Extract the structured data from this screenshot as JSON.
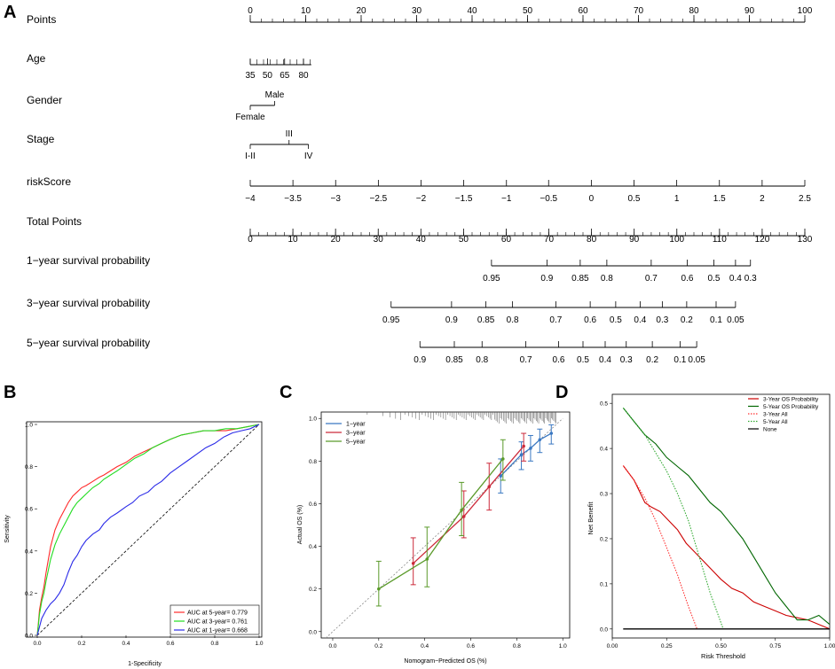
{
  "panels": {
    "A": "A",
    "B": "B",
    "C": "C",
    "D": "D"
  },
  "chart_data": [
    {
      "type": "nomogram",
      "panel": "A",
      "rows": [
        {
          "key": "points",
          "label": "Points",
          "axis": {
            "min": 0,
            "max": 100,
            "major": [
              0,
              10,
              20,
              30,
              40,
              50,
              60,
              70,
              80,
              90,
              100
            ],
            "minor_step": 2
          }
        },
        {
          "key": "age",
          "label": "Age",
          "ticks": [
            {
              "value": 35,
              "points": 0
            },
            {
              "value": 50,
              "points": 3.1
            },
            {
              "value": 65,
              "points": 6.2
            },
            {
              "value": 80,
              "points": 9.6
            }
          ],
          "tick_labels": [
            "35",
            "50",
            "65",
            "80"
          ],
          "minor_range_points": [
            0,
            11
          ],
          "minor_step": 1.2
        },
        {
          "key": "gender",
          "label": "Gender",
          "ticks": [
            {
              "value": "Female",
              "points": 0,
              "side": "below"
            },
            {
              "value": "Male",
              "points": 4.4,
              "side": "above"
            }
          ]
        },
        {
          "key": "stage",
          "label": "Stage",
          "ticks": [
            {
              "value": "I-II",
              "points": 0,
              "side": "below"
            },
            {
              "value": "III",
              "points": 7,
              "side": "above"
            },
            {
              "value": "IV",
              "points": 10.5,
              "side": "below"
            }
          ]
        },
        {
          "key": "riskscore",
          "label": "riskScore",
          "ticks": [
            {
              "value": "−4",
              "points": 0
            },
            {
              "value": "−3.5",
              "points": 7.7
            },
            {
              "value": "−3",
              "points": 15.4
            },
            {
              "value": "−2.5",
              "points": 23.1
            },
            {
              "value": "−2",
              "points": 30.8
            },
            {
              "value": "−1.5",
              "points": 38.5
            },
            {
              "value": "−1",
              "points": 46.2
            },
            {
              "value": "−0.5",
              "points": 53.8
            },
            {
              "value": "0",
              "points": 61.5
            },
            {
              "value": "0.5",
              "points": 69.2
            },
            {
              "value": "1",
              "points": 76.9
            },
            {
              "value": "1.5",
              "points": 84.6
            },
            {
              "value": "2",
              "points": 92.3
            },
            {
              "value": "2.5",
              "points": 100
            }
          ]
        },
        {
          "key": "total",
          "label": "Total Points",
          "axis": {
            "min": 0,
            "max": 130,
            "major": [
              0,
              10,
              20,
              30,
              40,
              50,
              60,
              70,
              80,
              90,
              100,
              110,
              120,
              130
            ],
            "minor_step": 2
          }
        },
        {
          "key": "surv1",
          "label": "1−year survival probability",
          "ticks": [
            {
              "value": "0.95",
              "points": 43.5
            },
            {
              "value": "0.9",
              "points": 53.5
            },
            {
              "value": "0.85",
              "points": 59.5
            },
            {
              "value": "0.8",
              "points": 64.3
            },
            {
              "value": "0.7",
              "points": 72.3
            },
            {
              "value": "0.6",
              "points": 78.8
            },
            {
              "value": "0.5",
              "points": 83.6
            },
            {
              "value": "0.4",
              "points": 87.5
            },
            {
              "value": "0.3",
              "points": 90.2
            }
          ]
        },
        {
          "key": "surv3",
          "label": "3−year survival probability",
          "ticks": [
            {
              "value": "0.95",
              "points": 25.4
            },
            {
              "value": "0.9",
              "points": 36.3
            },
            {
              "value": "0.85",
              "points": 42.5
            },
            {
              "value": "0.8",
              "points": 47.3
            },
            {
              "value": "0.7",
              "points": 55.1
            },
            {
              "value": "0.6",
              "points": 61.3
            },
            {
              "value": "0.5",
              "points": 65.9
            },
            {
              "value": "0.4",
              "points": 70.3
            },
            {
              "value": "0.3",
              "points": 74.3
            },
            {
              "value": "0.2",
              "points": 78.7
            },
            {
              "value": "0.1",
              "points": 84.0
            },
            {
              "value": "0.05",
              "points": 87.5
            }
          ]
        },
        {
          "key": "surv5",
          "label": "5−year survival probability",
          "ticks": [
            {
              "value": "0.9",
              "points": 30.6
            },
            {
              "value": "0.85",
              "points": 36.8
            },
            {
              "value": "0.8",
              "points": 41.8
            },
            {
              "value": "0.7",
              "points": 49.7
            },
            {
              "value": "0.6",
              "points": 55.6
            },
            {
              "value": "0.5",
              "points": 60.0
            },
            {
              "value": "0.4",
              "points": 64.0
            },
            {
              "value": "0.3",
              "points": 67.8
            },
            {
              "value": "0.2",
              "points": 72.5
            },
            {
              "value": "0.1",
              "points": 77.5
            },
            {
              "value": "0.05",
              "points": 80.5
            }
          ]
        }
      ]
    },
    {
      "type": "line",
      "panel": "B",
      "title": "",
      "xlabel": "1-Specificity",
      "ylabel": "Sensitivity",
      "xlim": [
        0,
        1
      ],
      "ylim": [
        0,
        1
      ],
      "xticks": [
        "0.0",
        "0.2",
        "0.4",
        "0.6",
        "0.8",
        "1.0"
      ],
      "yticks": [
        "0.0",
        "0.2",
        "0.4",
        "0.6",
        "0.8",
        "1.0"
      ],
      "reference_line": "diagonal",
      "legend": "bottom-right",
      "series": [
        {
          "name": "AUC at 5-year= 0.779",
          "color": "#ff2a2a",
          "x": [
            0,
            0.005,
            0.01,
            0.02,
            0.03,
            0.04,
            0.05,
            0.06,
            0.08,
            0.1,
            0.12,
            0.14,
            0.16,
            0.18,
            0.2,
            0.22,
            0.25,
            0.28,
            0.3,
            0.33,
            0.36,
            0.4,
            0.44,
            0.48,
            0.52,
            0.56,
            0.6,
            0.65,
            0.7,
            0.75,
            0.8,
            0.85,
            0.9,
            0.95,
            1
          ],
          "y": [
            0,
            0.06,
            0.12,
            0.18,
            0.23,
            0.3,
            0.36,
            0.42,
            0.5,
            0.55,
            0.59,
            0.63,
            0.66,
            0.68,
            0.7,
            0.71,
            0.73,
            0.75,
            0.76,
            0.78,
            0.8,
            0.82,
            0.85,
            0.87,
            0.89,
            0.91,
            0.93,
            0.95,
            0.96,
            0.97,
            0.97,
            0.97,
            0.98,
            0.99,
            1
          ]
        },
        {
          "name": "AUC at 3-year= 0.761",
          "color": "#22dd22",
          "x": [
            0,
            0.005,
            0.01,
            0.02,
            0.03,
            0.04,
            0.05,
            0.06,
            0.08,
            0.1,
            0.12,
            0.14,
            0.16,
            0.18,
            0.2,
            0.22,
            0.25,
            0.28,
            0.3,
            0.33,
            0.36,
            0.4,
            0.44,
            0.48,
            0.52,
            0.56,
            0.6,
            0.65,
            0.7,
            0.75,
            0.8,
            0.85,
            0.9,
            0.95,
            1
          ],
          "y": [
            0,
            0.05,
            0.1,
            0.16,
            0.2,
            0.26,
            0.31,
            0.36,
            0.43,
            0.48,
            0.52,
            0.56,
            0.6,
            0.63,
            0.65,
            0.67,
            0.7,
            0.72,
            0.74,
            0.76,
            0.78,
            0.81,
            0.84,
            0.86,
            0.89,
            0.91,
            0.93,
            0.95,
            0.96,
            0.97,
            0.97,
            0.98,
            0.98,
            0.99,
            1
          ]
        },
        {
          "name": "AUC at 1-year= 0.668",
          "color": "#2a2ae8",
          "x": [
            0,
            0.01,
            0.02,
            0.04,
            0.06,
            0.08,
            0.1,
            0.12,
            0.14,
            0.16,
            0.18,
            0.2,
            0.22,
            0.25,
            0.28,
            0.3,
            0.33,
            0.36,
            0.4,
            0.43,
            0.46,
            0.5,
            0.53,
            0.56,
            0.6,
            0.64,
            0.68,
            0.72,
            0.76,
            0.8,
            0.84,
            0.88,
            0.92,
            0.96,
            1
          ],
          "y": [
            0,
            0.04,
            0.08,
            0.12,
            0.15,
            0.17,
            0.2,
            0.24,
            0.3,
            0.35,
            0.38,
            0.42,
            0.45,
            0.48,
            0.5,
            0.53,
            0.56,
            0.58,
            0.61,
            0.63,
            0.66,
            0.68,
            0.71,
            0.73,
            0.77,
            0.8,
            0.83,
            0.86,
            0.89,
            0.91,
            0.94,
            0.96,
            0.97,
            0.98,
            1
          ]
        }
      ]
    },
    {
      "type": "line",
      "panel": "C",
      "title": "",
      "xlabel": "Nomogram−Predicted OS (%)",
      "ylabel": "Actual OS (%)",
      "xlim": [
        -0.05,
        1.03
      ],
      "ylim": [
        -0.03,
        1.03
      ],
      "xticks": [
        "0.0",
        "0.2",
        "0.4",
        "0.6",
        "0.8",
        "1.0"
      ],
      "yticks": [
        "0.0",
        "0.2",
        "0.4",
        "0.6",
        "0.8",
        "1.0"
      ],
      "reference_line": "diagonal-dotted",
      "legend": "top-left",
      "series": [
        {
          "name": "1−year",
          "color": "#3a78c2",
          "x": [
            0.73,
            0.82,
            0.86,
            0.9,
            0.95
          ],
          "y": [
            0.73,
            0.83,
            0.86,
            0.9,
            0.93
          ],
          "err_lo": [
            0.65,
            0.76,
            0.8,
            0.84,
            0.88
          ],
          "err_hi": [
            0.81,
            0.89,
            0.92,
            0.95,
            0.97
          ]
        },
        {
          "name": "3−year",
          "color": "#cc2a3a",
          "x": [
            0.35,
            0.57,
            0.68,
            0.83
          ],
          "y": [
            0.32,
            0.54,
            0.68,
            0.87
          ],
          "err_lo": [
            0.22,
            0.44,
            0.57,
            0.8
          ],
          "err_hi": [
            0.44,
            0.66,
            0.79,
            0.93
          ]
        },
        {
          "name": "5−year",
          "color": "#5a9a2a",
          "x": [
            0.2,
            0.41,
            0.56,
            0.74
          ],
          "y": [
            0.2,
            0.34,
            0.57,
            0.81
          ],
          "err_lo": [
            0.12,
            0.21,
            0.45,
            0.71
          ],
          "err_hi": [
            0.33,
            0.49,
            0.7,
            0.9
          ]
        }
      ]
    },
    {
      "type": "line",
      "panel": "D",
      "title": "",
      "xlabel": "Risk Threshold",
      "ylabel": "Net Benefit",
      "xlim": [
        0,
        1
      ],
      "ylim": [
        -0.02,
        0.52
      ],
      "xticks": [
        "0.00",
        "0.25",
        "0.50",
        "0.75",
        "1.00"
      ],
      "yticks": [
        "0.0",
        "0.1",
        "0.2",
        "0.3",
        "0.4",
        "0.5"
      ],
      "legend": "top-right",
      "series": [
        {
          "name": "3-Year OS Probability",
          "color": "#cc0000",
          "dash": "solid",
          "x": [
            0.05,
            0.1,
            0.15,
            0.18,
            0.22,
            0.26,
            0.3,
            0.34,
            0.38,
            0.42,
            0.46,
            0.5,
            0.55,
            0.6,
            0.65,
            0.7,
            0.75,
            0.8,
            0.85,
            0.9,
            0.95,
            1.0
          ],
          "y": [
            0.362,
            0.33,
            0.28,
            0.27,
            0.26,
            0.24,
            0.22,
            0.19,
            0.17,
            0.15,
            0.13,
            0.11,
            0.09,
            0.08,
            0.06,
            0.05,
            0.04,
            0.03,
            0.025,
            0.02,
            0.01,
            0.0
          ]
        },
        {
          "name": "5-Year OS Probability",
          "color": "#006600",
          "dash": "solid",
          "x": [
            0.05,
            0.1,
            0.15,
            0.2,
            0.25,
            0.3,
            0.35,
            0.4,
            0.45,
            0.5,
            0.55,
            0.6,
            0.65,
            0.7,
            0.75,
            0.8,
            0.85,
            0.9,
            0.95,
            1.0
          ],
          "y": [
            0.49,
            0.46,
            0.43,
            0.41,
            0.38,
            0.36,
            0.34,
            0.31,
            0.28,
            0.26,
            0.23,
            0.2,
            0.16,
            0.12,
            0.08,
            0.05,
            0.02,
            0.02,
            0.03,
            0.01
          ]
        },
        {
          "name": "3-Year All",
          "color": "#ff3333",
          "dash": "dotted",
          "x": [
            0.05,
            0.1,
            0.15,
            0.2,
            0.25,
            0.3,
            0.35,
            0.39
          ],
          "y": [
            0.362,
            0.33,
            0.29,
            0.24,
            0.18,
            0.12,
            0.05,
            0.0
          ]
        },
        {
          "name": "5-Year All",
          "color": "#33aa33",
          "dash": "dotted",
          "x": [
            0.05,
            0.1,
            0.15,
            0.2,
            0.25,
            0.3,
            0.35,
            0.4,
            0.45,
            0.51
          ],
          "y": [
            0.49,
            0.46,
            0.43,
            0.39,
            0.35,
            0.3,
            0.24,
            0.16,
            0.08,
            0.0
          ]
        },
        {
          "name": "None",
          "color": "#000000",
          "dash": "solid",
          "x": [
            0.05,
            1.0
          ],
          "y": [
            0,
            0
          ]
        }
      ]
    }
  ]
}
